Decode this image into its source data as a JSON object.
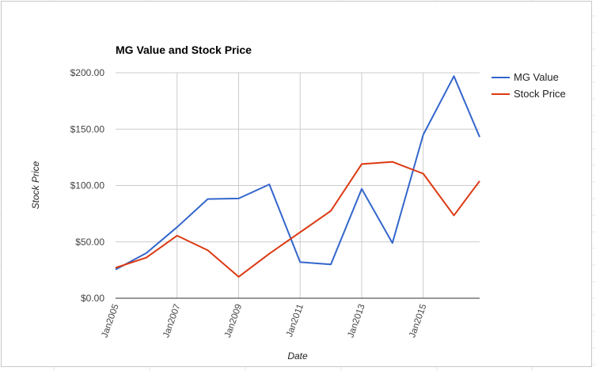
{
  "colors": {
    "mg_value": "#3366cc",
    "stock_price": "#dc3912",
    "gridline": "#cccccc",
    "baseline": "#333333"
  },
  "chart_data": {
    "type": "line",
    "title": "MG Value and Stock Price",
    "xlabel": "Date",
    "ylabel": "Stock Price",
    "ylim": [
      0,
      200
    ],
    "y_ticks": [
      "$0.00",
      "$50.00",
      "$100.00",
      "$150.00",
      "$200.00"
    ],
    "x_ticks": [
      "Jan2005",
      "Jan2007",
      "Jan2009",
      "Jan2011",
      "Jan2013",
      "Jan2015"
    ],
    "x_domain": [
      "2005-01-01",
      "2016-11-01"
    ],
    "grid": true,
    "legend_position": "right",
    "series": [
      {
        "name": "MG Value",
        "color": "#3366cc",
        "points": [
          {
            "x": "2005-01-01",
            "y": 25.5
          },
          {
            "x": "2006-01-01",
            "y": 40
          },
          {
            "x": "2007-01-01",
            "y": 63
          },
          {
            "x": "2008-01-01",
            "y": 88
          },
          {
            "x": "2008-07-01",
            "y": 88.3
          },
          {
            "x": "2009-01-01",
            "y": 88.5
          },
          {
            "x": "2010-01-01",
            "y": 101
          },
          {
            "x": "2011-01-01",
            "y": 32
          },
          {
            "x": "2012-01-01",
            "y": 30
          },
          {
            "x": "2013-01-01",
            "y": 97
          },
          {
            "x": "2014-01-01",
            "y": 49
          },
          {
            "x": "2015-01-01",
            "y": 145
          },
          {
            "x": "2016-01-01",
            "y": 197
          },
          {
            "x": "2016-11-01",
            "y": 143
          }
        ]
      },
      {
        "name": "Stock Price",
        "color": "#dc3912",
        "points": [
          {
            "x": "2005-01-01",
            "y": 27
          },
          {
            "x": "2006-01-01",
            "y": 36
          },
          {
            "x": "2007-01-01",
            "y": 55.5
          },
          {
            "x": "2008-01-01",
            "y": 42.5
          },
          {
            "x": "2009-01-01",
            "y": 19
          },
          {
            "x": "2010-01-01",
            "y": 39.5
          },
          {
            "x": "2011-01-01",
            "y": 58.5
          },
          {
            "x": "2012-01-01",
            "y": 77.5
          },
          {
            "x": "2013-01-01",
            "y": 119
          },
          {
            "x": "2014-01-01",
            "y": 121
          },
          {
            "x": "2015-01-01",
            "y": 110.5
          },
          {
            "x": "2016-01-01",
            "y": 73.5
          },
          {
            "x": "2016-11-01",
            "y": 104
          }
        ]
      }
    ]
  }
}
